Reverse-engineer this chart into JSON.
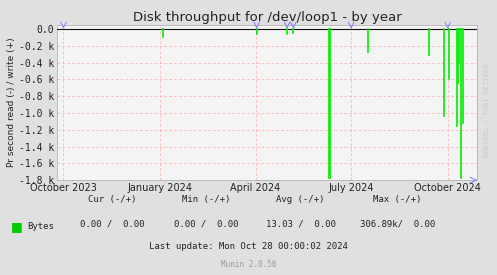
{
  "title": "Disk throughput for /dev/loop1 - by year",
  "ylabel": "Pr second read (-) / write (+)",
  "background_color": "#e0e0e0",
  "plot_bg_color": "#f4f4f4",
  "grid_color_h": "#ffaaaa",
  "grid_color_v": "#ffaaaa",
  "line_color": "#00ee00",
  "top_line_color": "#111111",
  "ylim": [
    -1800,
    50
  ],
  "yticks": [
    0,
    -200,
    -400,
    -600,
    -800,
    -1000,
    -1200,
    -1400,
    -1600,
    -1800
  ],
  "ytick_labels": [
    "0.0",
    "-0.2 k",
    "-0.4 k",
    "-0.6 k",
    "-0.8 k",
    "-1.0 k",
    "-1.2 k",
    "-1.4 k",
    "-1.6 k",
    "-1.8 k"
  ],
  "xaxis_start": 1695600000,
  "xaxis_end": 1730160000,
  "xtick_positions": [
    1696118400,
    1704067200,
    1711929600,
    1719792000,
    1727740800
  ],
  "xtick_labels": [
    "October 2023",
    "January 2024",
    "April 2024",
    "July 2024",
    "October 2024"
  ],
  "spikes": [
    [
      1704326400,
      -90
    ],
    [
      1712016000,
      -60
    ],
    [
      1714521600,
      -55
    ],
    [
      1715040000,
      -50
    ],
    [
      1717977600,
      -1780
    ],
    [
      1718064000,
      -1780
    ],
    [
      1721174400,
      -280
    ],
    [
      1726185600,
      -310
    ],
    [
      1727395200,
      -1040
    ],
    [
      1727827200,
      -600
    ],
    [
      1728518400,
      -1150
    ],
    [
      1728604800,
      -640
    ],
    [
      1728691200,
      -410
    ],
    [
      1728864000,
      -1780
    ],
    [
      1729036800,
      -1120
    ]
  ],
  "arrow_color": "#8888ff",
  "watermark": "RRDTOOL / TOBI OETIKER",
  "legend_label": "Bytes",
  "legend_color": "#00cc00",
  "text_color": "#222222",
  "stats_header": "     Cur (-/+)          Min (-/+)          Avg (-/+)          Max (-/+)",
  "stats_row": " Bytes      0.00 /  0.00       0.00 /  0.00      13.03 /  0.00    306.89k/  0.00",
  "last_update": "Last update: Mon Oct 28 00:00:02 2024",
  "munin_label": "Munin 2.0.56",
  "watermark_color": "#c8c8c8"
}
